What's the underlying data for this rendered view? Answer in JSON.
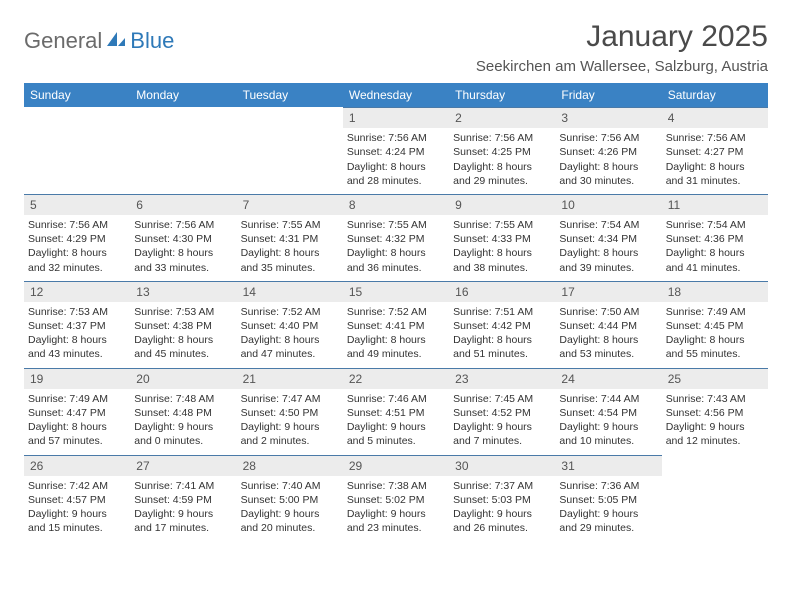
{
  "logo": {
    "text1": "General",
    "text2": "Blue"
  },
  "title": "January 2025",
  "location": "Seekirchen am Wallersee, Salzburg, Austria",
  "colors": {
    "header_bg": "#3a82c4",
    "header_text": "#ffffff",
    "daynum_bg": "#ececec",
    "week_border": "#4a7aa8",
    "body_text": "#333333",
    "title_text": "#4a4a4a",
    "logo_gray": "#6b6b6b",
    "logo_blue": "#2e79b8"
  },
  "dow": [
    "Sunday",
    "Monday",
    "Tuesday",
    "Wednesday",
    "Thursday",
    "Friday",
    "Saturday"
  ],
  "weeks": [
    [
      {
        "n": "",
        "sunrise": "",
        "sunset": "",
        "daylight": ""
      },
      {
        "n": "",
        "sunrise": "",
        "sunset": "",
        "daylight": ""
      },
      {
        "n": "",
        "sunrise": "",
        "sunset": "",
        "daylight": ""
      },
      {
        "n": "1",
        "sunrise": "Sunrise: 7:56 AM",
        "sunset": "Sunset: 4:24 PM",
        "daylight": "Daylight: 8 hours and 28 minutes."
      },
      {
        "n": "2",
        "sunrise": "Sunrise: 7:56 AM",
        "sunset": "Sunset: 4:25 PM",
        "daylight": "Daylight: 8 hours and 29 minutes."
      },
      {
        "n": "3",
        "sunrise": "Sunrise: 7:56 AM",
        "sunset": "Sunset: 4:26 PM",
        "daylight": "Daylight: 8 hours and 30 minutes."
      },
      {
        "n": "4",
        "sunrise": "Sunrise: 7:56 AM",
        "sunset": "Sunset: 4:27 PM",
        "daylight": "Daylight: 8 hours and 31 minutes."
      }
    ],
    [
      {
        "n": "5",
        "sunrise": "Sunrise: 7:56 AM",
        "sunset": "Sunset: 4:29 PM",
        "daylight": "Daylight: 8 hours and 32 minutes."
      },
      {
        "n": "6",
        "sunrise": "Sunrise: 7:56 AM",
        "sunset": "Sunset: 4:30 PM",
        "daylight": "Daylight: 8 hours and 33 minutes."
      },
      {
        "n": "7",
        "sunrise": "Sunrise: 7:55 AM",
        "sunset": "Sunset: 4:31 PM",
        "daylight": "Daylight: 8 hours and 35 minutes."
      },
      {
        "n": "8",
        "sunrise": "Sunrise: 7:55 AM",
        "sunset": "Sunset: 4:32 PM",
        "daylight": "Daylight: 8 hours and 36 minutes."
      },
      {
        "n": "9",
        "sunrise": "Sunrise: 7:55 AM",
        "sunset": "Sunset: 4:33 PM",
        "daylight": "Daylight: 8 hours and 38 minutes."
      },
      {
        "n": "10",
        "sunrise": "Sunrise: 7:54 AM",
        "sunset": "Sunset: 4:34 PM",
        "daylight": "Daylight: 8 hours and 39 minutes."
      },
      {
        "n": "11",
        "sunrise": "Sunrise: 7:54 AM",
        "sunset": "Sunset: 4:36 PM",
        "daylight": "Daylight: 8 hours and 41 minutes."
      }
    ],
    [
      {
        "n": "12",
        "sunrise": "Sunrise: 7:53 AM",
        "sunset": "Sunset: 4:37 PM",
        "daylight": "Daylight: 8 hours and 43 minutes."
      },
      {
        "n": "13",
        "sunrise": "Sunrise: 7:53 AM",
        "sunset": "Sunset: 4:38 PM",
        "daylight": "Daylight: 8 hours and 45 minutes."
      },
      {
        "n": "14",
        "sunrise": "Sunrise: 7:52 AM",
        "sunset": "Sunset: 4:40 PM",
        "daylight": "Daylight: 8 hours and 47 minutes."
      },
      {
        "n": "15",
        "sunrise": "Sunrise: 7:52 AM",
        "sunset": "Sunset: 4:41 PM",
        "daylight": "Daylight: 8 hours and 49 minutes."
      },
      {
        "n": "16",
        "sunrise": "Sunrise: 7:51 AM",
        "sunset": "Sunset: 4:42 PM",
        "daylight": "Daylight: 8 hours and 51 minutes."
      },
      {
        "n": "17",
        "sunrise": "Sunrise: 7:50 AM",
        "sunset": "Sunset: 4:44 PM",
        "daylight": "Daylight: 8 hours and 53 minutes."
      },
      {
        "n": "18",
        "sunrise": "Sunrise: 7:49 AM",
        "sunset": "Sunset: 4:45 PM",
        "daylight": "Daylight: 8 hours and 55 minutes."
      }
    ],
    [
      {
        "n": "19",
        "sunrise": "Sunrise: 7:49 AM",
        "sunset": "Sunset: 4:47 PM",
        "daylight": "Daylight: 8 hours and 57 minutes."
      },
      {
        "n": "20",
        "sunrise": "Sunrise: 7:48 AM",
        "sunset": "Sunset: 4:48 PM",
        "daylight": "Daylight: 9 hours and 0 minutes."
      },
      {
        "n": "21",
        "sunrise": "Sunrise: 7:47 AM",
        "sunset": "Sunset: 4:50 PM",
        "daylight": "Daylight: 9 hours and 2 minutes."
      },
      {
        "n": "22",
        "sunrise": "Sunrise: 7:46 AM",
        "sunset": "Sunset: 4:51 PM",
        "daylight": "Daylight: 9 hours and 5 minutes."
      },
      {
        "n": "23",
        "sunrise": "Sunrise: 7:45 AM",
        "sunset": "Sunset: 4:52 PM",
        "daylight": "Daylight: 9 hours and 7 minutes."
      },
      {
        "n": "24",
        "sunrise": "Sunrise: 7:44 AM",
        "sunset": "Sunset: 4:54 PM",
        "daylight": "Daylight: 9 hours and 10 minutes."
      },
      {
        "n": "25",
        "sunrise": "Sunrise: 7:43 AM",
        "sunset": "Sunset: 4:56 PM",
        "daylight": "Daylight: 9 hours and 12 minutes."
      }
    ],
    [
      {
        "n": "26",
        "sunrise": "Sunrise: 7:42 AM",
        "sunset": "Sunset: 4:57 PM",
        "daylight": "Daylight: 9 hours and 15 minutes."
      },
      {
        "n": "27",
        "sunrise": "Sunrise: 7:41 AM",
        "sunset": "Sunset: 4:59 PM",
        "daylight": "Daylight: 9 hours and 17 minutes."
      },
      {
        "n": "28",
        "sunrise": "Sunrise: 7:40 AM",
        "sunset": "Sunset: 5:00 PM",
        "daylight": "Daylight: 9 hours and 20 minutes."
      },
      {
        "n": "29",
        "sunrise": "Sunrise: 7:38 AM",
        "sunset": "Sunset: 5:02 PM",
        "daylight": "Daylight: 9 hours and 23 minutes."
      },
      {
        "n": "30",
        "sunrise": "Sunrise: 7:37 AM",
        "sunset": "Sunset: 5:03 PM",
        "daylight": "Daylight: 9 hours and 26 minutes."
      },
      {
        "n": "31",
        "sunrise": "Sunrise: 7:36 AM",
        "sunset": "Sunset: 5:05 PM",
        "daylight": "Daylight: 9 hours and 29 minutes."
      },
      {
        "n": "",
        "sunrise": "",
        "sunset": "",
        "daylight": ""
      }
    ]
  ]
}
